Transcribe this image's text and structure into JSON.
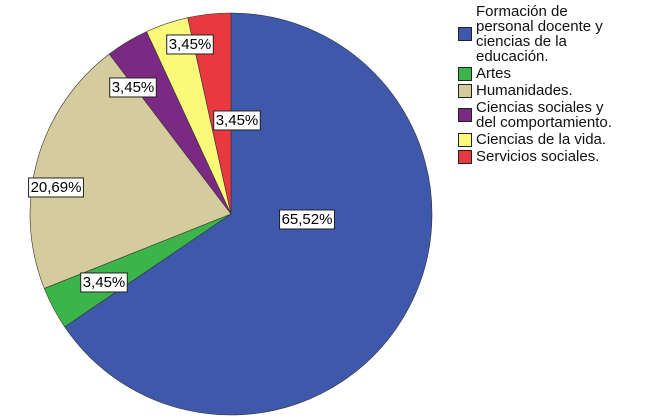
{
  "chart_data": {
    "type": "pie",
    "categories": [
      "Formación de personal docente y ciencias de la educación.",
      "Artes",
      "Humanidades.",
      "Ciencias sociales y del comportamiento.",
      "Ciencias de la vida.",
      "Servicios sociales."
    ],
    "values": [
      65.52,
      3.45,
      20.69,
      3.45,
      3.45,
      3.45
    ],
    "value_labels": [
      "65,52%",
      "3,45%",
      "20,69%",
      "3,45%",
      "3,45%",
      "3,45%"
    ],
    "colors": [
      "#3e58ac",
      "#3bb54a",
      "#d4cc9c",
      "#7b2a83",
      "#fbf97a",
      "#e9383f"
    ]
  }
}
